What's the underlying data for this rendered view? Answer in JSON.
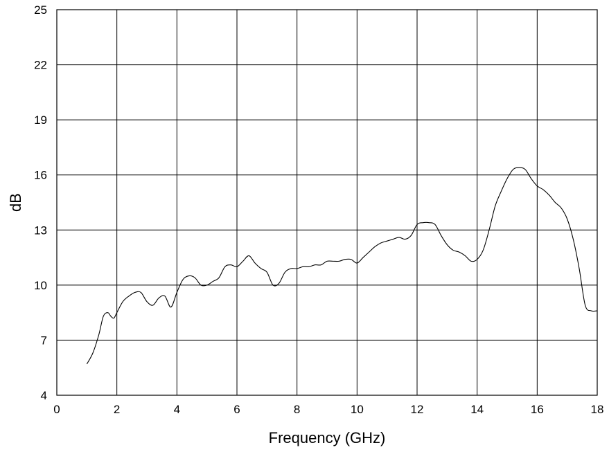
{
  "chart_data": {
    "type": "line",
    "title": "",
    "xlabel": "Frequency (GHz)",
    "ylabel": "dB",
    "xlim": [
      0,
      18
    ],
    "ylim": [
      4,
      25
    ],
    "xticks": [
      0,
      2,
      4,
      6,
      8,
      10,
      12,
      14,
      16,
      18
    ],
    "yticks": [
      4,
      7,
      10,
      13,
      16,
      19,
      22,
      25
    ],
    "grid": true,
    "legend": "none",
    "series_color": "#000000",
    "series": [
      {
        "x": [
          1.0,
          1.2,
          1.4,
          1.55,
          1.7,
          1.8,
          1.9,
          2.0,
          2.2,
          2.4,
          2.6,
          2.8,
          3.0,
          3.2,
          3.4,
          3.6,
          3.8,
          4.0,
          4.2,
          4.4,
          4.6,
          4.8,
          5.0,
          5.2,
          5.4,
          5.6,
          5.8,
          6.0,
          6.2,
          6.4,
          6.6,
          6.8,
          7.0,
          7.2,
          7.4,
          7.6,
          7.8,
          8.0,
          8.2,
          8.4,
          8.6,
          8.8,
          9.0,
          9.2,
          9.4,
          9.6,
          9.8,
          10.0,
          10.2,
          10.4,
          10.6,
          10.8,
          11.0,
          11.2,
          11.4,
          11.6,
          11.8,
          12.0,
          12.2,
          12.4,
          12.6,
          12.8,
          13.0,
          13.2,
          13.4,
          13.6,
          13.8,
          14.0,
          14.2,
          14.4,
          14.6,
          14.8,
          15.0,
          15.2,
          15.4,
          15.6,
          15.8,
          16.0,
          16.2,
          16.4,
          16.6,
          16.8,
          17.0,
          17.2,
          17.4,
          17.6,
          17.8,
          18.0
        ],
        "y": [
          5.7,
          6.3,
          7.3,
          8.3,
          8.5,
          8.3,
          8.2,
          8.5,
          9.1,
          9.4,
          9.6,
          9.6,
          9.1,
          8.9,
          9.3,
          9.4,
          8.8,
          9.6,
          10.3,
          10.5,
          10.4,
          10.0,
          10.0,
          10.2,
          10.4,
          11.0,
          11.1,
          11.0,
          11.3,
          11.6,
          11.2,
          10.9,
          10.7,
          10.0,
          10.1,
          10.7,
          10.9,
          10.9,
          11.0,
          11.0,
          11.1,
          11.1,
          11.3,
          11.3,
          11.3,
          11.4,
          11.4,
          11.2,
          11.5,
          11.8,
          12.1,
          12.3,
          12.4,
          12.5,
          12.6,
          12.5,
          12.7,
          13.3,
          13.4,
          13.4,
          13.3,
          12.7,
          12.2,
          11.9,
          11.8,
          11.6,
          11.3,
          11.4,
          11.9,
          13.0,
          14.3,
          15.1,
          15.8,
          16.3,
          16.4,
          16.3,
          15.8,
          15.4,
          15.2,
          14.9,
          14.5,
          14.2,
          13.6,
          12.5,
          10.9,
          8.9,
          8.6,
          8.6
        ]
      }
    ]
  }
}
